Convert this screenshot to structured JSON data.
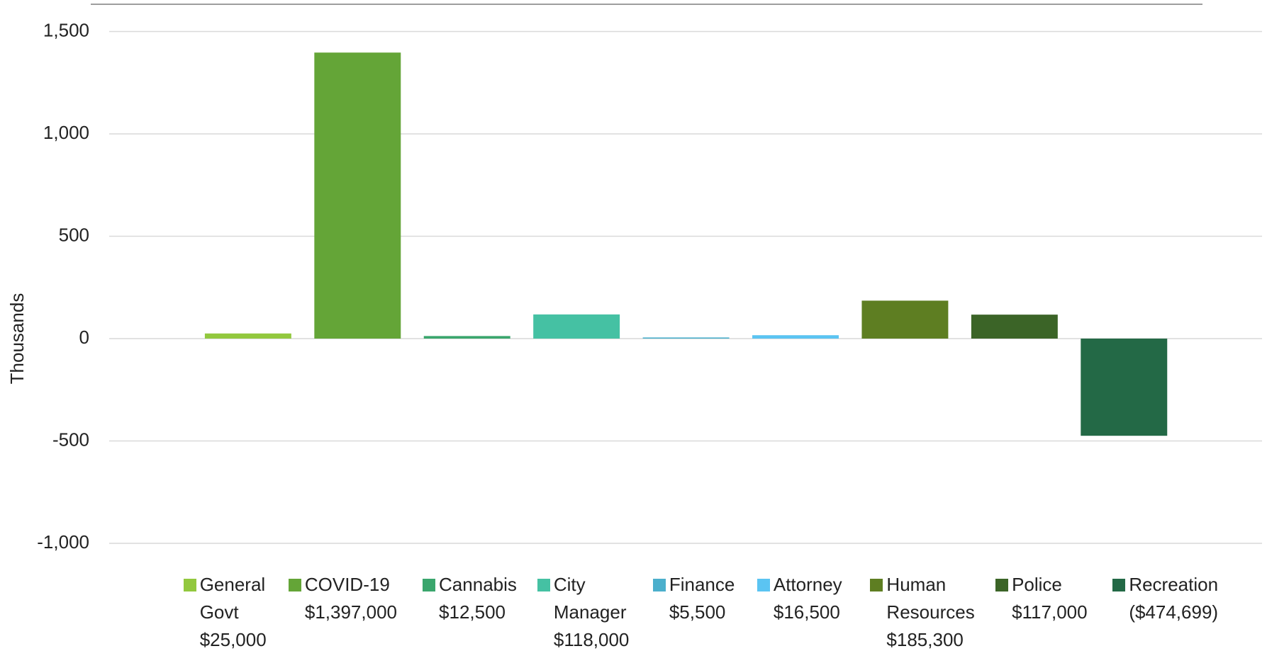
{
  "chart_data": {
    "type": "bar",
    "y_axis_label": "Thousands",
    "ylim": [
      -1000,
      1500
    ],
    "yticks": [
      {
        "value": 1500,
        "label": "1,500"
      },
      {
        "value": 1000,
        "label": "1,000"
      },
      500,
      0,
      -500,
      {
        "value": -1000,
        "label": "-1,000"
      }
    ],
    "grid": true,
    "legend": "bottom",
    "series": [
      {
        "name": "General Govt",
        "color": "#92c83e",
        "values": [
          25
        ],
        "value_labels": [
          "$25,000"
        ]
      },
      {
        "name": "COVID-19",
        "color": "#64a537",
        "values": [
          1397
        ],
        "value_labels": [
          "$1,397,000"
        ]
      },
      {
        "name": "Cannabis",
        "color": "#3aa66d",
        "values": [
          12.5
        ],
        "value_labels": [
          "$12,500"
        ]
      },
      {
        "name": "City Manager",
        "color": "#45c1a3",
        "values": [
          118
        ],
        "value_labels": [
          "$118,000"
        ]
      },
      {
        "name": "Finance",
        "color": "#4bafcc",
        "values": [
          5.5
        ],
        "value_labels": [
          "$5,500"
        ]
      },
      {
        "name": "Attorney",
        "color": "#5bc4f2",
        "values": [
          16.5
        ],
        "value_labels": [
          "$16,500"
        ]
      },
      {
        "name": "Human Resources",
        "color": "#5e7e22",
        "values": [
          185.3
        ],
        "value_labels": [
          "$185,300"
        ]
      },
      {
        "name": "Police",
        "color": "#3b6427",
        "values": [
          117
        ],
        "value_labels": [
          "$117,000"
        ]
      },
      {
        "name": "Recreation",
        "color": "#236946",
        "values": [
          -474.699
        ],
        "value_labels": [
          "($474,699)"
        ]
      }
    ]
  }
}
